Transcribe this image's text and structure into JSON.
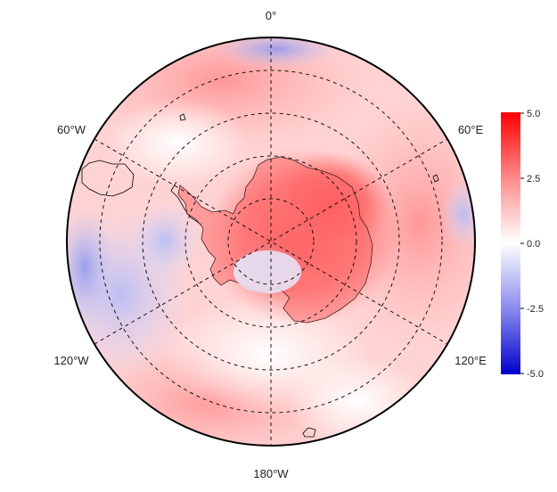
{
  "map": {
    "projection": "south polar stereographic",
    "longitude_labels": {
      "top": "0°",
      "upper_left": "60°W",
      "upper_right": "60°E",
      "lower_left": "120°W",
      "lower_right": "120°E",
      "bottom": "180°W"
    },
    "graticule": "dashed"
  },
  "colorbar": {
    "ticks": [
      "5.0",
      "2.5",
      "0.0",
      "-2.5",
      "-5.0"
    ],
    "min": -5.0,
    "max": 5.0,
    "colors": {
      "high": "#ff0000",
      "mid": "#ffffff",
      "low": "#0000cc"
    }
  }
}
